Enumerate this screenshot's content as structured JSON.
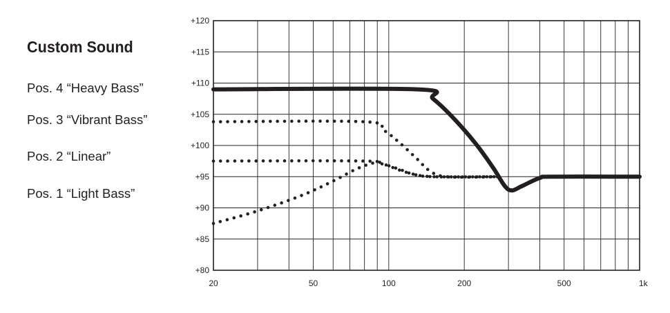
{
  "legend": {
    "title": "Custom Sound",
    "items": [
      "Pos. 4 “Heavy Bass”",
      "Pos. 3 “Vibrant Bass”",
      "Pos. 2 “Linear”",
      "Pos. 1 “Light Bass”"
    ]
  },
  "chart_data": {
    "type": "line",
    "title": "Custom Sound",
    "xlabel": "",
    "ylabel": "",
    "x_scale": "log",
    "xlim": [
      20,
      1000
    ],
    "ylim": [
      80,
      120
    ],
    "grid": true,
    "legend_position": "left",
    "x_ticks": [
      {
        "value": 20,
        "label": "20"
      },
      {
        "value": 50,
        "label": "50"
      },
      {
        "value": 100,
        "label": "100"
      },
      {
        "value": 200,
        "label": "200"
      },
      {
        "value": 500,
        "label": "500"
      },
      {
        "value": 1000,
        "label": "1k"
      }
    ],
    "y_ticks": [
      {
        "value": 80,
        "label": "+80"
      },
      {
        "value": 85,
        "label": "+85"
      },
      {
        "value": 90,
        "label": "+90"
      },
      {
        "value": 95,
        "label": "+95"
      },
      {
        "value": 100,
        "label": "+100"
      },
      {
        "value": 105,
        "label": "+105"
      },
      {
        "value": 110,
        "label": "+110"
      },
      {
        "value": 115,
        "label": "+115"
      },
      {
        "value": 120,
        "label": "+120"
      }
    ],
    "series": [
      {
        "name": "Pos. 4 “Heavy Bass”",
        "style": "solid",
        "color": "#231f20",
        "points": [
          [
            20,
            109
          ],
          [
            130,
            109
          ],
          [
            150,
            107.5
          ],
          [
            180,
            104.5
          ],
          [
            220,
            100.5
          ],
          [
            260,
            96.5
          ],
          [
            290,
            93.5
          ],
          [
            310,
            92.8
          ],
          [
            340,
            93.5
          ],
          [
            400,
            94.8
          ],
          [
            450,
            95
          ],
          [
            1000,
            95
          ]
        ]
      },
      {
        "name": "Pos. 3 “Vibrant Bass”",
        "style": "dotted",
        "color": "#231f20",
        "points": [
          [
            20,
            103.8
          ],
          [
            80,
            103.8
          ],
          [
            95,
            102.5
          ],
          [
            110,
            100.5
          ],
          [
            130,
            97.8
          ],
          [
            145,
            96
          ],
          [
            170,
            95
          ],
          [
            280,
            95
          ]
        ]
      },
      {
        "name": "Pos. 2 “Linear”",
        "style": "dotted",
        "color": "#231f20",
        "points": [
          [
            20,
            97.5
          ],
          [
            80,
            97.5
          ],
          [
            95,
            97
          ],
          [
            110,
            96.2
          ],
          [
            125,
            95.4
          ],
          [
            150,
            95
          ],
          [
            280,
            95
          ]
        ]
      },
      {
        "name": "Pos. 1 “Light Bass”",
        "style": "dotted",
        "color": "#231f20",
        "points": [
          [
            20,
            87.5
          ],
          [
            30,
            89.5
          ],
          [
            45,
            92
          ],
          [
            60,
            94.3
          ],
          [
            75,
            96.3
          ],
          [
            90,
            97.3
          ],
          [
            100,
            96.7
          ],
          [
            120,
            95.6
          ],
          [
            150,
            95
          ],
          [
            280,
            95
          ]
        ]
      }
    ]
  }
}
